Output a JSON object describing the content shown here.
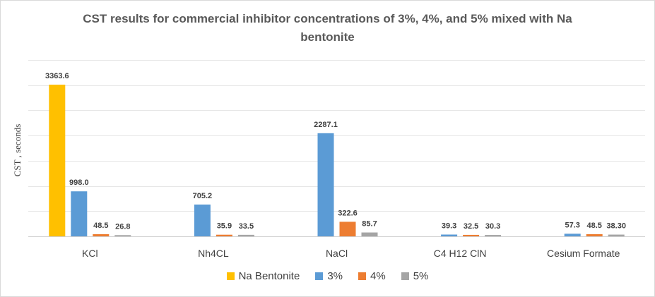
{
  "chart_data": {
    "type": "bar",
    "title": "CST results for commercial  inhibitor concentrations of 3%, 4%, and 5% mixed with Na bentonite",
    "ylabel": "CST , seconds",
    "xlabel": "",
    "ylim": [
      0,
      3363.6
    ],
    "grid": true,
    "legend_position": "bottom",
    "categories": [
      "KCl",
      "Nh4CL",
      "NaCl",
      "C4 H12 ClN",
      "Cesium Formate"
    ],
    "series": [
      {
        "name": "Na Bentonite",
        "color": "#ffc000",
        "values": [
          3363.6,
          null,
          null,
          null,
          null
        ],
        "labels": [
          "3363.6",
          "",
          "",
          "",
          ""
        ]
      },
      {
        "name": "3%",
        "color": "#5b9bd5",
        "values": [
          998.0,
          705.2,
          2287.1,
          39.3,
          57.3
        ],
        "labels": [
          "998.0",
          "705.2",
          "2287.1",
          "39.3",
          "57.3"
        ]
      },
      {
        "name": "4%",
        "color": "#ed7d31",
        "values": [
          48.5,
          35.9,
          322.6,
          32.5,
          48.5
        ],
        "labels": [
          "48.5",
          "35.9",
          "322.6",
          "32.5",
          "48.5"
        ]
      },
      {
        "name": "5%",
        "color": "#a5a5a5",
        "values": [
          26.8,
          33.5,
          85.7,
          30.3,
          38.3
        ],
        "labels": [
          "26.8",
          "33.5",
          "85.7",
          "30.3",
          "38.30"
        ]
      }
    ]
  }
}
